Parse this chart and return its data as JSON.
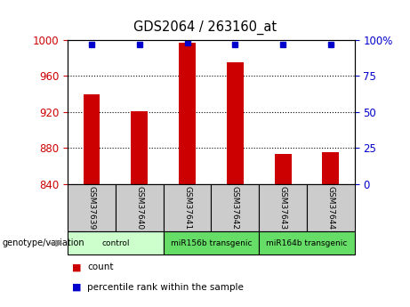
{
  "title": "GDS2064 / 263160_at",
  "samples": [
    "GSM37639",
    "GSM37640",
    "GSM37641",
    "GSM37642",
    "GSM37643",
    "GSM37644"
  ],
  "counts": [
    940,
    921,
    997,
    975,
    874,
    876
  ],
  "percentile_ranks": [
    97,
    97,
    98,
    97,
    97,
    97
  ],
  "ylim_left": [
    840,
    1000
  ],
  "ylim_right": [
    0,
    100
  ],
  "yticks_left": [
    840,
    880,
    920,
    960,
    1000
  ],
  "yticks_right": [
    0,
    25,
    50,
    75,
    100
  ],
  "bar_color": "#cc0000",
  "dot_color": "#0000cc",
  "bar_width": 0.35,
  "legend_count_color": "#cc0000",
  "legend_pct_color": "#0000cc",
  "sample_box_color": "#cccccc",
  "control_color": "#ccffcc",
  "transgenic_color": "#66dd66",
  "groups": [
    {
      "label": "control",
      "start": 0,
      "end": 2,
      "color": "#ccffcc"
    },
    {
      "label": "miR156b transgenic",
      "start": 2,
      "end": 4,
      "color": "#66dd66"
    },
    {
      "label": "miR164b transgenic",
      "start": 4,
      "end": 6,
      "color": "#66dd66"
    }
  ],
  "grid_yticks": [
    880,
    920,
    960
  ],
  "ytick_right_labels": [
    "0",
    "25",
    "50",
    "75",
    "100%"
  ]
}
